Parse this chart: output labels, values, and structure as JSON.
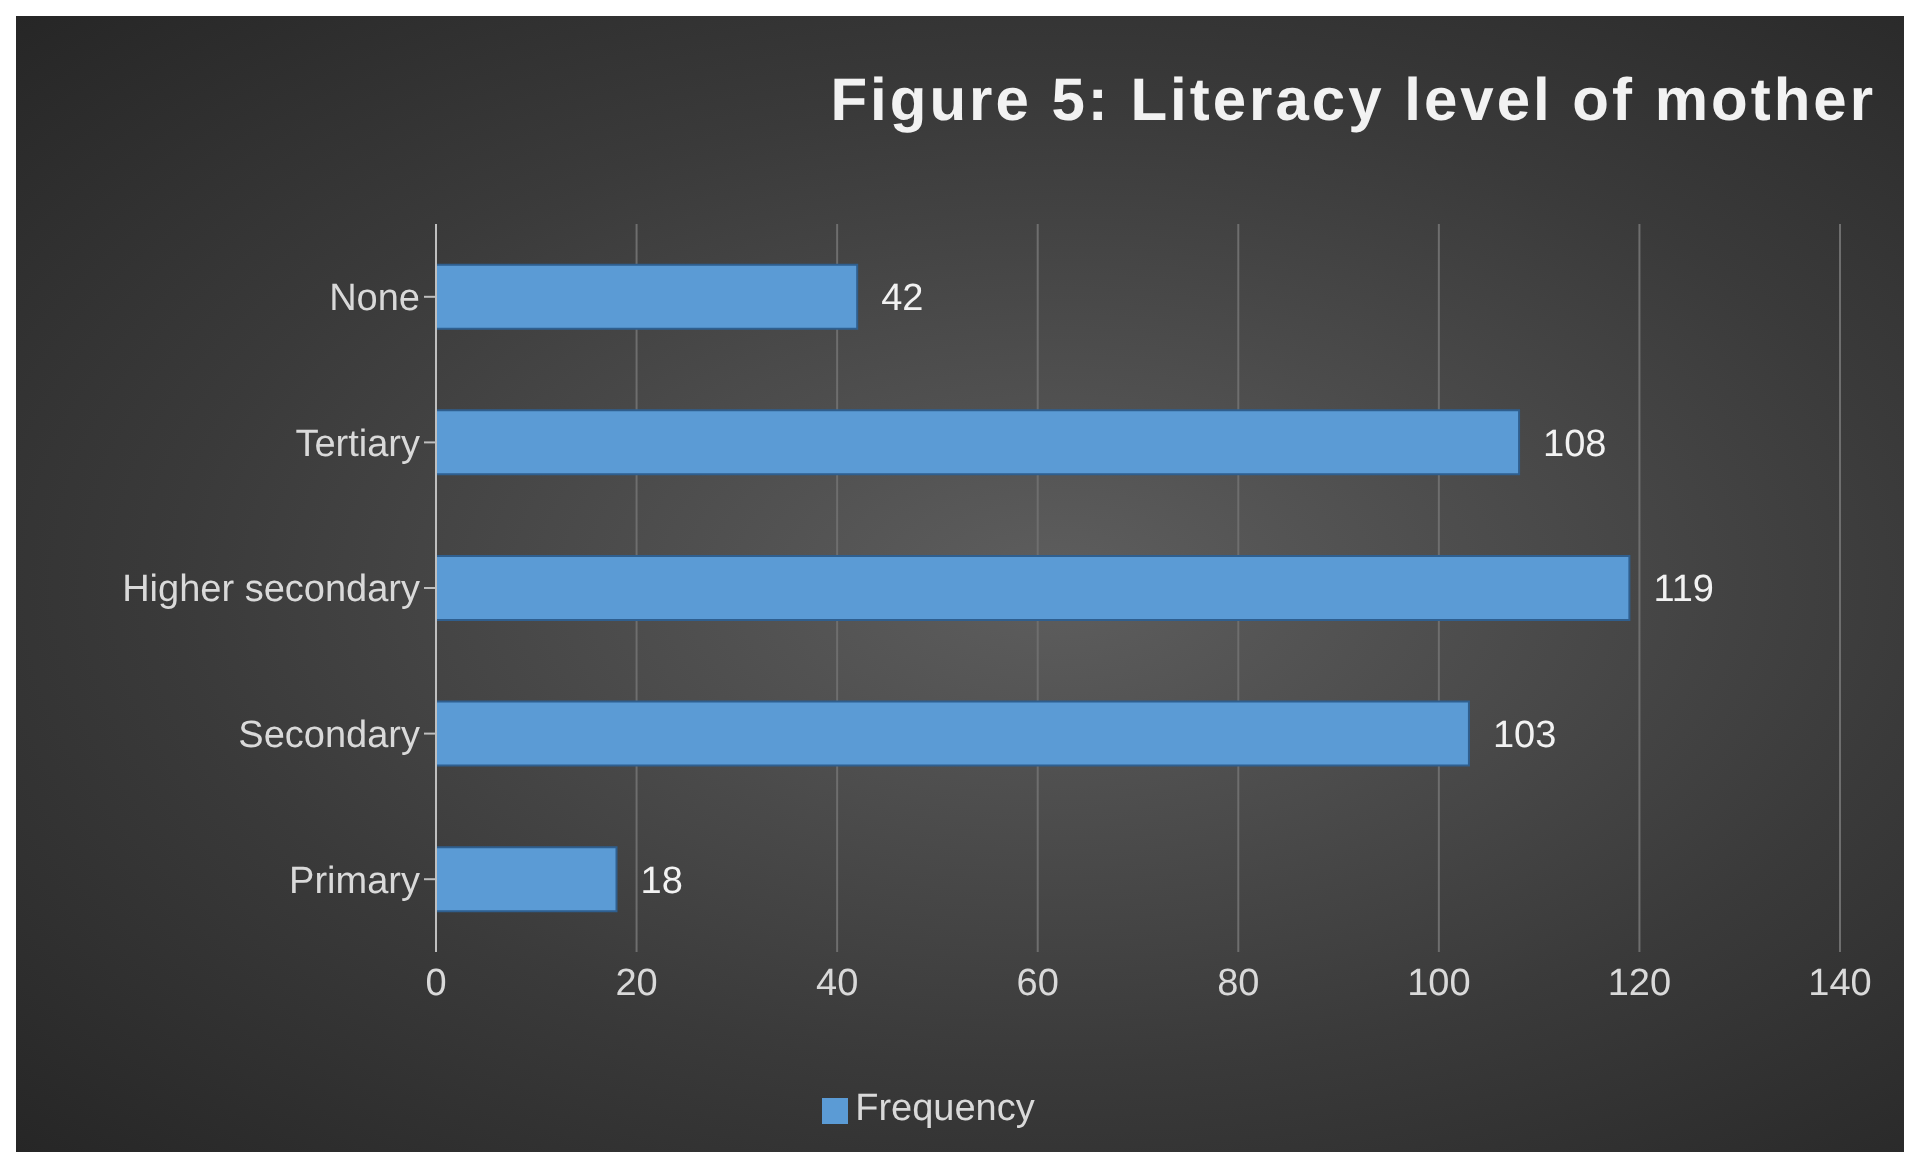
{
  "chart_data": {
    "type": "bar",
    "orientation": "horizontal",
    "title": "Figure 5: Literacy level of mother",
    "categories": [
      "None",
      "Tertiary",
      "Higher secondary",
      "Secondary",
      "Primary"
    ],
    "series": [
      {
        "name": "Frequency",
        "color": "#5b9bd5",
        "values": [
          42,
          108,
          119,
          103,
          18
        ]
      }
    ],
    "xlim": [
      0,
      140
    ],
    "xticks": [
      0,
      20,
      40,
      60,
      80,
      100,
      120,
      140
    ],
    "grid": "x",
    "legend": "bottom",
    "data_labels": true
  }
}
